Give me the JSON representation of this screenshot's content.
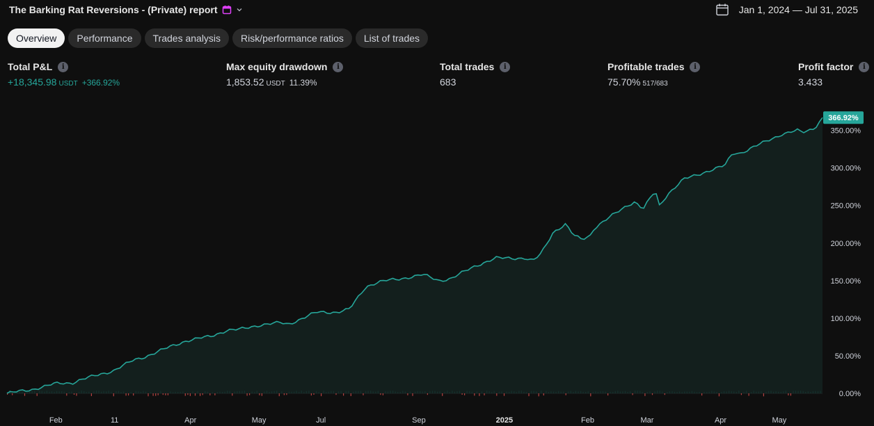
{
  "header": {
    "title": "The Barking Rat Reversions - (Private) report",
    "date_range": "Jan 1, 2024 — Jul 31, 2025"
  },
  "tabs": [
    {
      "label": "Overview",
      "active": true
    },
    {
      "label": "Performance",
      "active": false
    },
    {
      "label": "Trades analysis",
      "active": false
    },
    {
      "label": "Risk/performance ratios",
      "active": false
    },
    {
      "label": "List of trades",
      "active": false
    }
  ],
  "metrics": {
    "total_pnl": {
      "label": "Total P&L",
      "value": "+18,345.98",
      "unit": "USDT",
      "pct": "+366.92%"
    },
    "max_drawdown": {
      "label": "Max equity drawdown",
      "value": "1,853.52",
      "unit": "USDT",
      "pct": "11.39%"
    },
    "total_trades": {
      "label": "Total trades",
      "value": "683"
    },
    "profitable_trades": {
      "label": "Profitable trades",
      "value": "75.70%",
      "sub": "517/683"
    },
    "profit_factor": {
      "label": "Profit factor",
      "value": "3.433"
    }
  },
  "colors": {
    "accent": "#26a69a",
    "loss": "#ef5350",
    "background": "#0f0f0f",
    "icon_accent": "#e040fb"
  },
  "chart_data": {
    "type": "area",
    "ylabel_unit": "%",
    "ylim": [
      0,
      370
    ],
    "y_ticks": [
      "0.00%",
      "50.00%",
      "100.00%",
      "150.00%",
      "200.00%",
      "250.00%",
      "300.00%",
      "350.00%"
    ],
    "y_tick_values": [
      0,
      50,
      100,
      150,
      200,
      250,
      300,
      350
    ],
    "x_ticks": [
      {
        "label": "Feb",
        "t": 0.06
      },
      {
        "label": "11",
        "t": 0.132
      },
      {
        "label": "Apr",
        "t": 0.225
      },
      {
        "label": "May",
        "t": 0.309
      },
      {
        "label": "Jul",
        "t": 0.385
      },
      {
        "label": "Sep",
        "t": 0.505
      },
      {
        "label": "2025",
        "t": 0.61
      },
      {
        "label": "Feb",
        "t": 0.712
      },
      {
        "label": "Mar",
        "t": 0.785
      },
      {
        "label": "Apr",
        "t": 0.875
      },
      {
        "label": "May",
        "t": 0.947
      }
    ],
    "last_value_label": "366.92%",
    "series": [
      {
        "x": [
          0,
          0.03,
          0.06,
          0.08,
          0.09,
          0.1,
          0.13,
          0.155,
          0.17,
          0.2,
          0.22,
          0.25,
          0.27,
          0.285,
          0.31,
          0.335,
          0.345,
          0.38,
          0.405,
          0.42,
          0.44,
          0.455,
          0.465,
          0.48,
          0.51,
          0.53,
          0.545,
          0.575,
          0.6,
          0.635,
          0.645,
          0.655,
          0.67,
          0.685,
          0.695,
          0.705,
          0.715,
          0.72,
          0.76,
          0.77,
          0.78,
          0.795,
          0.8,
          0.81,
          0.83,
          0.86,
          0.88,
          0.89,
          0.9,
          0.93,
          0.95,
          0.97,
          0.975,
          0.99,
          1.0
        ],
        "values": [
          0,
          5,
          13,
          14,
          18,
          21,
          30,
          44,
          49,
          62,
          70,
          76,
          84,
          85,
          91,
          94,
          92,
          108,
          108,
          112,
          142,
          148,
          150,
          152,
          158,
          150,
          153,
          170,
          180,
          180,
          176,
          186,
          215,
          225,
          210,
          205,
          210,
          220,
          250,
          255,
          245,
          270,
          250,
          265,
          285,
          296,
          303,
          320,
          320,
          335,
          345,
          350,
          347,
          353,
          367
        ]
      }
    ]
  }
}
